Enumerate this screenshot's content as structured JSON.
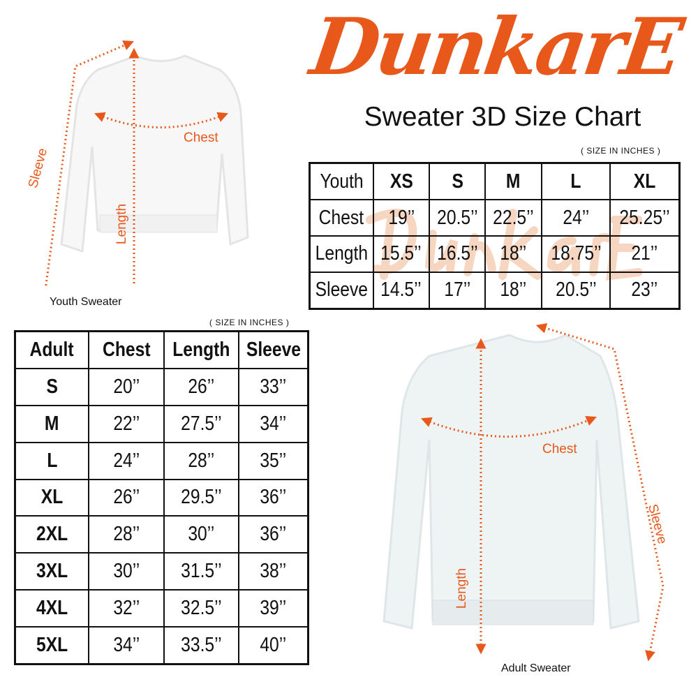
{
  "brand": {
    "logo_text": "DunkarE",
    "color": "#e8581a"
  },
  "title": "Sweater 3D Size Chart",
  "youth": {
    "unit_note": "( SIZE IN INCHES )",
    "caption": "Youth Sweater",
    "labels": {
      "chest": "Chest",
      "length": "Length",
      "sleeve": "Sleeve"
    },
    "headers": [
      "Youth",
      "XS",
      "S",
      "M",
      "L",
      "XL"
    ],
    "rows": [
      [
        "Chest",
        "19’’",
        "20.5’’",
        "22.5’’",
        "24’’",
        "25.25’’"
      ],
      [
        "Length",
        "15.5’’",
        "16.5’’",
        "18’’",
        "18.75’’",
        "21’’"
      ],
      [
        "Sleeve",
        "14.5’’",
        "17’’",
        "18’’",
        "20.5’’",
        "23’’"
      ]
    ]
  },
  "adult": {
    "unit_note": "( SIZE IN INCHES )",
    "caption": "Adult Sweater",
    "labels": {
      "chest": "Chest",
      "length": "Length",
      "sleeve": "Sleeve"
    },
    "headers": [
      "Adult",
      "Chest",
      "Length",
      "Sleeve"
    ],
    "rows": [
      [
        "S",
        "20’’",
        "26’’",
        "33’’"
      ],
      [
        "M",
        "22’’",
        "27.5’’",
        "34’’"
      ],
      [
        "L",
        "24’’",
        "28’’",
        "35’’"
      ],
      [
        "XL",
        "26’’",
        "29.5’’",
        "36’’"
      ],
      [
        "2XL",
        "28’’",
        "30’’",
        "36’’"
      ],
      [
        "3XL",
        "30’’",
        "31.5’’",
        "38’’"
      ],
      [
        "4XL",
        "32’’",
        "32.5’’",
        "39’’"
      ],
      [
        "5XL",
        "34’’",
        "33.5’’",
        "40’’"
      ]
    ]
  }
}
